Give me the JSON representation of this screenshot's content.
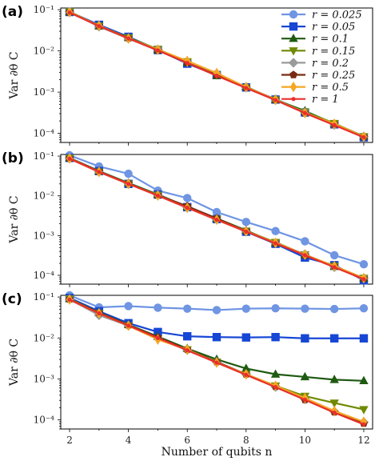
{
  "chart_data": [
    {
      "type": "line",
      "panel_label": "(a)",
      "x": [
        2,
        3,
        4,
        5,
        6,
        7,
        8,
        9,
        10,
        11,
        12
      ],
      "ylabel": "Var ∂θ C",
      "xlabel": "",
      "yscale": "log",
      "ylim": [
        6e-05,
        0.11
      ],
      "yticks": [
        "10⁻⁴",
        "10⁻³",
        "10⁻²",
        "10⁻¹"
      ],
      "legend_position": "top-right",
      "series": [
        {
          "name": "r = 0.025",
          "color": "#6f95e3",
          "marker": "circle",
          "values": [
            0.088,
            0.042,
            0.022,
            0.0108,
            0.0052,
            0.0027,
            0.0013,
            0.00068,
            0.00033,
            0.000165,
            8.2e-05
          ]
        },
        {
          "name": "r = 0.05",
          "color": "#1646d4",
          "marker": "square",
          "values": [
            0.088,
            0.043,
            0.022,
            0.0105,
            0.0049,
            0.0026,
            0.0013,
            0.00066,
            0.00032,
            0.000165,
            8e-05
          ]
        },
        {
          "name": "r = 0.1",
          "color": "#1f5a12",
          "marker": "triangle-up",
          "values": [
            0.088,
            0.04,
            0.021,
            0.0106,
            0.0052,
            0.0025,
            0.00135,
            0.00065,
            0.00035,
            0.00017,
            8.5e-05
          ]
        },
        {
          "name": "r = 0.15",
          "color": "#6f8a00",
          "marker": "triangle-down",
          "values": [
            0.09,
            0.04,
            0.021,
            0.011,
            0.0055,
            0.0026,
            0.00128,
            0.00065,
            0.00033,
            0.000175,
            8.3e-05
          ]
        },
        {
          "name": "r = 0.2",
          "color": "#9a9a9a",
          "marker": "diamond",
          "values": [
            0.089,
            0.039,
            0.02,
            0.0108,
            0.0053,
            0.0028,
            0.0013,
            0.00064,
            0.00032,
            0.00016,
            8.3e-05
          ]
        },
        {
          "name": "r = 0.25",
          "color": "#7a2a12",
          "marker": "pentagon",
          "values": [
            0.088,
            0.04,
            0.0205,
            0.0103,
            0.0052,
            0.0026,
            0.0013,
            0.00065,
            0.00031,
            0.000165,
            8.2e-05
          ]
        },
        {
          "name": "r = 0.5",
          "color": "#f5a623",
          "marker": "thin-diamond",
          "values": [
            0.087,
            0.041,
            0.02,
            0.0108,
            0.0057,
            0.0029,
            0.00132,
            0.00066,
            0.00031,
            0.00017,
            8.3e-05
          ]
        },
        {
          "name": "r = 1",
          "color": "#e8302a",
          "marker": "small-dot",
          "values": [
            0.085,
            0.04,
            0.02,
            0.0103,
            0.0051,
            0.0025,
            0.00126,
            0.00064,
            0.00031,
            0.000158,
            8e-05
          ]
        }
      ]
    },
    {
      "type": "line",
      "panel_label": "(b)",
      "x": [
        2,
        3,
        4,
        5,
        6,
        7,
        8,
        9,
        10,
        11,
        12
      ],
      "ylabel": "Var ∂θ C",
      "xlabel": "",
      "yscale": "log",
      "ylim": [
        6e-05,
        0.11
      ],
      "yticks": [
        "10⁻⁴",
        "10⁻³",
        "10⁻²",
        "10⁻¹"
      ],
      "series": [
        {
          "name": "r = 0.025",
          "color": "#6f95e3",
          "marker": "circle",
          "values": [
            0.105,
            0.055,
            0.036,
            0.0135,
            0.0088,
            0.0039,
            0.0022,
            0.0013,
            0.00072,
            0.00032,
            0.00019
          ]
        },
        {
          "name": "r = 0.05",
          "color": "#1646d4",
          "marker": "square",
          "values": [
            0.09,
            0.042,
            0.02,
            0.0108,
            0.0052,
            0.0026,
            0.00125,
            0.00062,
            0.00028,
            0.00018,
            7.5e-05
          ]
        },
        {
          "name": "r = 0.1",
          "color": "#1f5a12",
          "marker": "triangle-up",
          "values": [
            0.09,
            0.042,
            0.021,
            0.0108,
            0.0053,
            0.0027,
            0.00135,
            0.00065,
            0.00033,
            0.000165,
            8.5e-05
          ]
        },
        {
          "name": "r = 0.15",
          "color": "#6f8a00",
          "marker": "triangle-down",
          "values": [
            0.09,
            0.04,
            0.02,
            0.0105,
            0.005,
            0.0026,
            0.0013,
            0.00068,
            0.00033,
            0.00017,
            8.5e-05
          ]
        },
        {
          "name": "r = 0.2",
          "color": "#9a9a9a",
          "marker": "diamond",
          "values": [
            0.089,
            0.04,
            0.02,
            0.0104,
            0.0051,
            0.0026,
            0.0013,
            0.00065,
            0.00034,
            0.00016,
            8.5e-05
          ]
        },
        {
          "name": "r = 0.25",
          "color": "#7a2a12",
          "marker": "pentagon",
          "values": [
            0.088,
            0.041,
            0.0205,
            0.0103,
            0.0055,
            0.0027,
            0.0013,
            0.00065,
            0.00032,
            0.00017,
            8.3e-05
          ]
        },
        {
          "name": "r = 0.5",
          "color": "#f5a623",
          "marker": "thin-diamond",
          "values": [
            0.087,
            0.04,
            0.02,
            0.0102,
            0.005,
            0.0025,
            0.00128,
            0.00066,
            0.00033,
            0.00017,
            8.5e-05
          ]
        },
        {
          "name": "r = 1",
          "color": "#e8302a",
          "marker": "small-dot",
          "values": [
            0.086,
            0.04,
            0.02,
            0.0101,
            0.005,
            0.0025,
            0.00126,
            0.00064,
            0.00032,
            0.00016,
            8e-05
          ]
        }
      ]
    },
    {
      "type": "line",
      "panel_label": "(c)",
      "x": [
        2,
        3,
        4,
        5,
        6,
        7,
        8,
        9,
        10,
        11,
        12
      ],
      "ylabel": "Var ∂θ C",
      "xlabel": "Number of qubits n",
      "xticks": [
        "2",
        "4",
        "6",
        "8",
        "10",
        "12"
      ],
      "yscale": "log",
      "ylim": [
        6e-05,
        0.11
      ],
      "yticks": [
        "10⁻⁴",
        "10⁻³",
        "10⁻²",
        "10⁻¹"
      ],
      "series": [
        {
          "name": "r = 0.025",
          "color": "#6f95e3",
          "marker": "circle",
          "values": [
            0.11,
            0.056,
            0.06,
            0.055,
            0.052,
            0.048,
            0.052,
            0.053,
            0.052,
            0.051,
            0.053
          ]
        },
        {
          "name": "r = 0.05",
          "color": "#1646d4",
          "marker": "square",
          "values": [
            0.095,
            0.045,
            0.023,
            0.014,
            0.011,
            0.0105,
            0.0103,
            0.0105,
            0.0098,
            0.0098,
            0.0098
          ]
        },
        {
          "name": "r = 0.1",
          "color": "#1f5a12",
          "marker": "triangle-up",
          "values": [
            0.09,
            0.042,
            0.021,
            0.0108,
            0.0055,
            0.003,
            0.0018,
            0.0013,
            0.00112,
            0.00096,
            0.0009
          ]
        },
        {
          "name": "r = 0.15",
          "color": "#6f8a00",
          "marker": "triangle-down",
          "values": [
            0.09,
            0.04,
            0.02,
            0.0095,
            0.0052,
            0.0026,
            0.0013,
            0.00068,
            0.00038,
            0.00026,
            0.00018
          ]
        },
        {
          "name": "r = 0.2",
          "color": "#9a9a9a",
          "marker": "diamond",
          "values": [
            0.088,
            0.036,
            0.02,
            0.01,
            0.0051,
            0.0026,
            0.0013,
            0.00064,
            0.00032,
            0.00016,
            8.8e-05
          ]
        },
        {
          "name": "r = 0.25",
          "color": "#7a2a12",
          "marker": "pentagon",
          "values": [
            0.088,
            0.041,
            0.0205,
            0.0103,
            0.0052,
            0.0026,
            0.0013,
            0.00065,
            0.00031,
            0.000155,
            8.2e-05
          ]
        },
        {
          "name": "r = 0.5",
          "color": "#f5a623",
          "marker": "thin-diamond",
          "values": [
            0.087,
            0.04,
            0.02,
            0.0092,
            0.0052,
            0.0025,
            0.0013,
            0.00068,
            0.00034,
            0.000165,
            9e-05
          ]
        },
        {
          "name": "r = 1",
          "color": "#e8302a",
          "marker": "small-dot",
          "values": [
            0.086,
            0.04,
            0.02,
            0.01,
            0.005,
            0.0025,
            0.00126,
            0.00063,
            0.00031,
            0.00015,
            7.8e-05
          ]
        }
      ]
    }
  ]
}
